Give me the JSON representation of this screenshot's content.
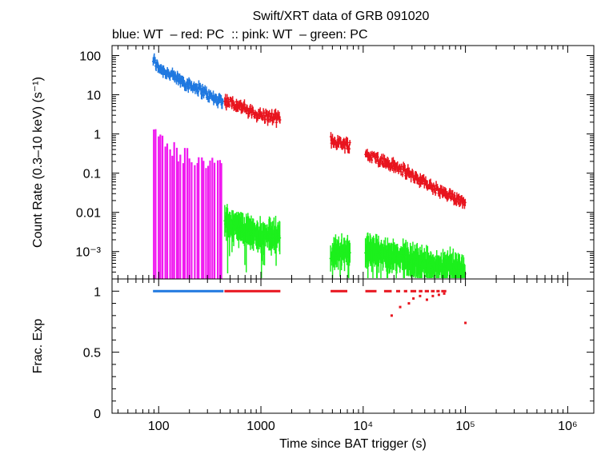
{
  "title": "Swift/XRT data of GRB 091020",
  "subtitle": "blue: WT  – red: PC  :: pink: WT  – green: PC",
  "xlabel": "Time since BAT trigger (s)",
  "colors": {
    "blue": "#1f78e0",
    "red": "#e8141e",
    "pink": "#f018f0",
    "green": "#1cf01c"
  },
  "chart_data": [
    {
      "type": "scatter",
      "xscale": "log",
      "yscale": "log",
      "xlim": [
        35,
        1800000
      ],
      "ylim": [
        0.0002,
        180
      ],
      "ylabel": "Count Rate (0.3–10 keV) (s⁻¹)",
      "x_ticks": [
        {
          "value": 100,
          "label": "100"
        },
        {
          "value": 1000,
          "label": "1000"
        },
        {
          "value": 10000,
          "label": "10⁴"
        },
        {
          "value": 100000,
          "label": "10⁵"
        },
        {
          "value": 1000000,
          "label": "10⁶"
        }
      ],
      "y_ticks": [
        {
          "value": 100,
          "label": "100"
        },
        {
          "value": 10,
          "label": "10"
        },
        {
          "value": 1,
          "label": "1"
        },
        {
          "value": 0.1,
          "label": "0.1"
        },
        {
          "value": 0.01,
          "label": "0.01"
        },
        {
          "value": 0.001,
          "label": "10⁻³"
        }
      ],
      "series": [
        {
          "color": "blue",
          "segments": [
            [
              88,
              430
            ]
          ],
          "points": [
            [
              88,
              80
            ],
            [
              100,
              50
            ],
            [
              120,
              38
            ],
            [
              150,
              26
            ],
            [
              200,
              18
            ],
            [
              250,
              14
            ],
            [
              300,
              10
            ],
            [
              350,
              8
            ],
            [
              430,
              7
            ]
          ]
        },
        {
          "color": "red",
          "segments": [
            [
              440,
              1550
            ],
            [
              4800,
              7500
            ],
            [
              10500,
              100000
            ]
          ],
          "points": [
            [
              440,
              7
            ],
            [
              600,
              5.5
            ],
            [
              800,
              3.5
            ],
            [
              1000,
              3
            ],
            [
              1550,
              2.4
            ],
            [
              4800,
              0.7
            ],
            [
              7500,
              0.5
            ],
            [
              11000,
              0.3
            ],
            [
              20000,
              0.15
            ],
            [
              30000,
              0.09
            ],
            [
              50000,
              0.04
            ],
            [
              70000,
              0.025
            ],
            [
              100000,
              0.02
            ]
          ]
        },
        {
          "color": "pink",
          "segments": [
            [
              88,
              430
            ]
          ],
          "points": [
            [
              88,
              0.8
            ],
            [
              100,
              0.6
            ],
            [
              130,
              0.3
            ],
            [
              180,
              0.2
            ],
            [
              250,
              0.15
            ],
            [
              350,
              0.15
            ],
            [
              420,
              0.12
            ]
          ]
        },
        {
          "color": "green",
          "segments": [
            [
              440,
              1550
            ],
            [
              4800,
              7500
            ],
            [
              10500,
              100000
            ]
          ],
          "points": [
            [
              440,
              0.006
            ],
            [
              600,
              0.004
            ],
            [
              800,
              0.003
            ],
            [
              1000,
              0.0025
            ],
            [
              1550,
              0.0025
            ],
            [
              4800,
              0.0008
            ],
            [
              7500,
              0.0012
            ],
            [
              11000,
              0.001
            ],
            [
              20000,
              0.0008
            ],
            [
              30000,
              0.0006
            ],
            [
              50000,
              0.0004
            ],
            [
              70000,
              0.0004
            ],
            [
              100000,
              0.0003
            ]
          ]
        }
      ]
    },
    {
      "type": "scatter",
      "xscale": "log",
      "xlim": [
        35,
        1800000
      ],
      "ylim": [
        0,
        1.1
      ],
      "ylabel": "Frac. Exp",
      "y_ticks": [
        {
          "value": 1,
          "label": "1"
        },
        {
          "value": 0.5,
          "label": "0.5"
        },
        {
          "value": 0,
          "label": "0"
        }
      ],
      "series": [
        {
          "color": "blue",
          "segments": [
            [
              88,
              430
            ]
          ],
          "value": 1
        },
        {
          "color": "red",
          "segments": [
            [
              440,
              1550
            ],
            [
              4800,
              7000
            ],
            [
              10500,
              13500
            ],
            [
              16000,
              19000
            ],
            [
              21000,
              23000
            ],
            [
              25000,
              27000
            ],
            [
              29000,
              33000
            ],
            [
              35000,
              38000
            ],
            [
              40000,
              44000
            ],
            [
              46000,
              50000
            ],
            [
              52000,
              56000
            ],
            [
              58000,
              65000
            ]
          ],
          "value": 1,
          "points": [
            [
              19000,
              0.8
            ],
            [
              23000,
              0.87
            ],
            [
              28000,
              0.9
            ],
            [
              31000,
              0.94
            ],
            [
              36000,
              0.96
            ],
            [
              42000,
              0.93
            ],
            [
              48000,
              0.96
            ],
            [
              55000,
              0.97
            ],
            [
              62000,
              0.98
            ],
            [
              100000,
              0.74
            ]
          ]
        }
      ]
    }
  ]
}
